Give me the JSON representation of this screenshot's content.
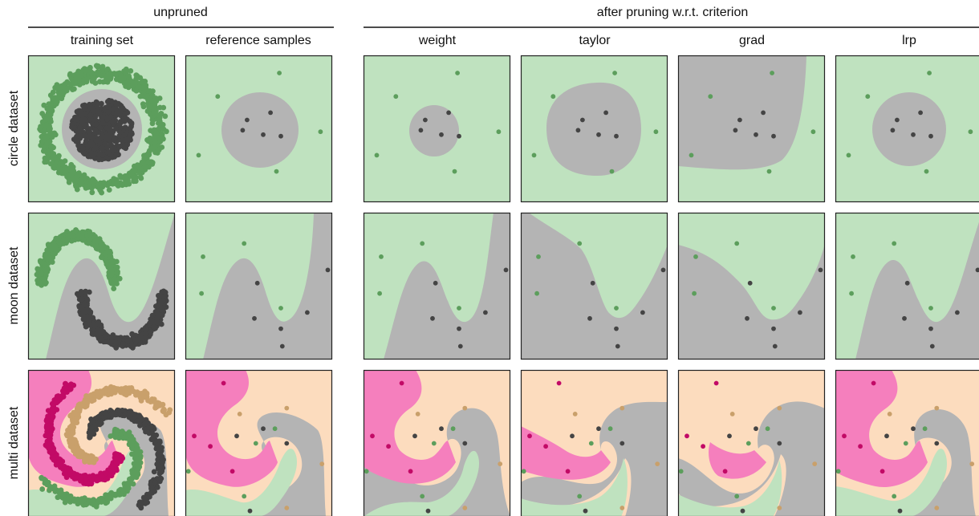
{
  "headers": {
    "unpruned": "unpruned",
    "after_pruning": "after pruning w.r.t. criterion"
  },
  "columns": [
    "training set",
    "reference samples",
    "weight",
    "taylor",
    "grad",
    "lrp"
  ],
  "rows": [
    "circle dataset",
    "moon dataset",
    "multi dataset"
  ],
  "colors": {
    "region_green": "#bfe2bf",
    "region_gray": "#b4b4b4",
    "region_peach": "#fcdcbe",
    "region_pink": "#f57fbd",
    "point_green": "#5c9e5c",
    "point_dark": "#444444",
    "point_tan": "#c9a06b",
    "point_magenta": "#c20a66",
    "frame": "#222222"
  },
  "chart_data": {
    "type": "scatter",
    "description_units": "data coordinates in [0,1] per panel, y up",
    "reference_samples": {
      "circle": [
        {
          "x": 0.64,
          "y": 0.88,
          "cls": "outer"
        },
        {
          "x": 0.22,
          "y": 0.72,
          "cls": "outer"
        },
        {
          "x": 0.92,
          "y": 0.48,
          "cls": "outer"
        },
        {
          "x": 0.09,
          "y": 0.32,
          "cls": "outer"
        },
        {
          "x": 0.62,
          "y": 0.21,
          "cls": "outer"
        },
        {
          "x": 0.58,
          "y": 0.61,
          "cls": "inner"
        },
        {
          "x": 0.42,
          "y": 0.56,
          "cls": "inner"
        },
        {
          "x": 0.39,
          "y": 0.49,
          "cls": "inner"
        },
        {
          "x": 0.53,
          "y": 0.46,
          "cls": "inner"
        },
        {
          "x": 0.65,
          "y": 0.45,
          "cls": "inner"
        }
      ],
      "moon": [
        {
          "x": 0.4,
          "y": 0.79,
          "cls": "upper"
        },
        {
          "x": 0.12,
          "y": 0.7,
          "cls": "upper"
        },
        {
          "x": 0.11,
          "y": 0.45,
          "cls": "upper"
        },
        {
          "x": 0.65,
          "y": 0.35,
          "cls": "upper"
        },
        {
          "x": 0.97,
          "y": 0.61,
          "cls": "lower"
        },
        {
          "x": 0.49,
          "y": 0.52,
          "cls": "lower"
        },
        {
          "x": 0.83,
          "y": 0.32,
          "cls": "lower"
        },
        {
          "x": 0.47,
          "y": 0.28,
          "cls": "lower"
        },
        {
          "x": 0.65,
          "y": 0.21,
          "cls": "lower"
        },
        {
          "x": 0.66,
          "y": 0.09,
          "cls": "lower"
        }
      ],
      "multi": [
        {
          "x": 0.26,
          "y": 0.91,
          "cls": "magenta"
        },
        {
          "x": 0.06,
          "y": 0.55,
          "cls": "magenta"
        },
        {
          "x": 0.17,
          "y": 0.48,
          "cls": "magenta"
        },
        {
          "x": 0.32,
          "y": 0.31,
          "cls": "magenta"
        },
        {
          "x": 0.69,
          "y": 0.74,
          "cls": "tan"
        },
        {
          "x": 0.37,
          "y": 0.7,
          "cls": "tan"
        },
        {
          "x": 0.93,
          "y": 0.36,
          "cls": "tan"
        },
        {
          "x": 0.69,
          "y": 0.06,
          "cls": "tan"
        },
        {
          "x": 0.35,
          "y": 0.55,
          "cls": "dark"
        },
        {
          "x": 0.53,
          "y": 0.6,
          "cls": "dark"
        },
        {
          "x": 0.69,
          "y": 0.5,
          "cls": "dark"
        },
        {
          "x": 0.44,
          "y": 0.04,
          "cls": "dark"
        },
        {
          "x": 0.02,
          "y": 0.31,
          "cls": "green"
        },
        {
          "x": 0.61,
          "y": 0.6,
          "cls": "green"
        },
        {
          "x": 0.48,
          "y": 0.5,
          "cls": "green"
        },
        {
          "x": 0.4,
          "y": 0.14,
          "cls": "green"
        }
      ]
    }
  }
}
